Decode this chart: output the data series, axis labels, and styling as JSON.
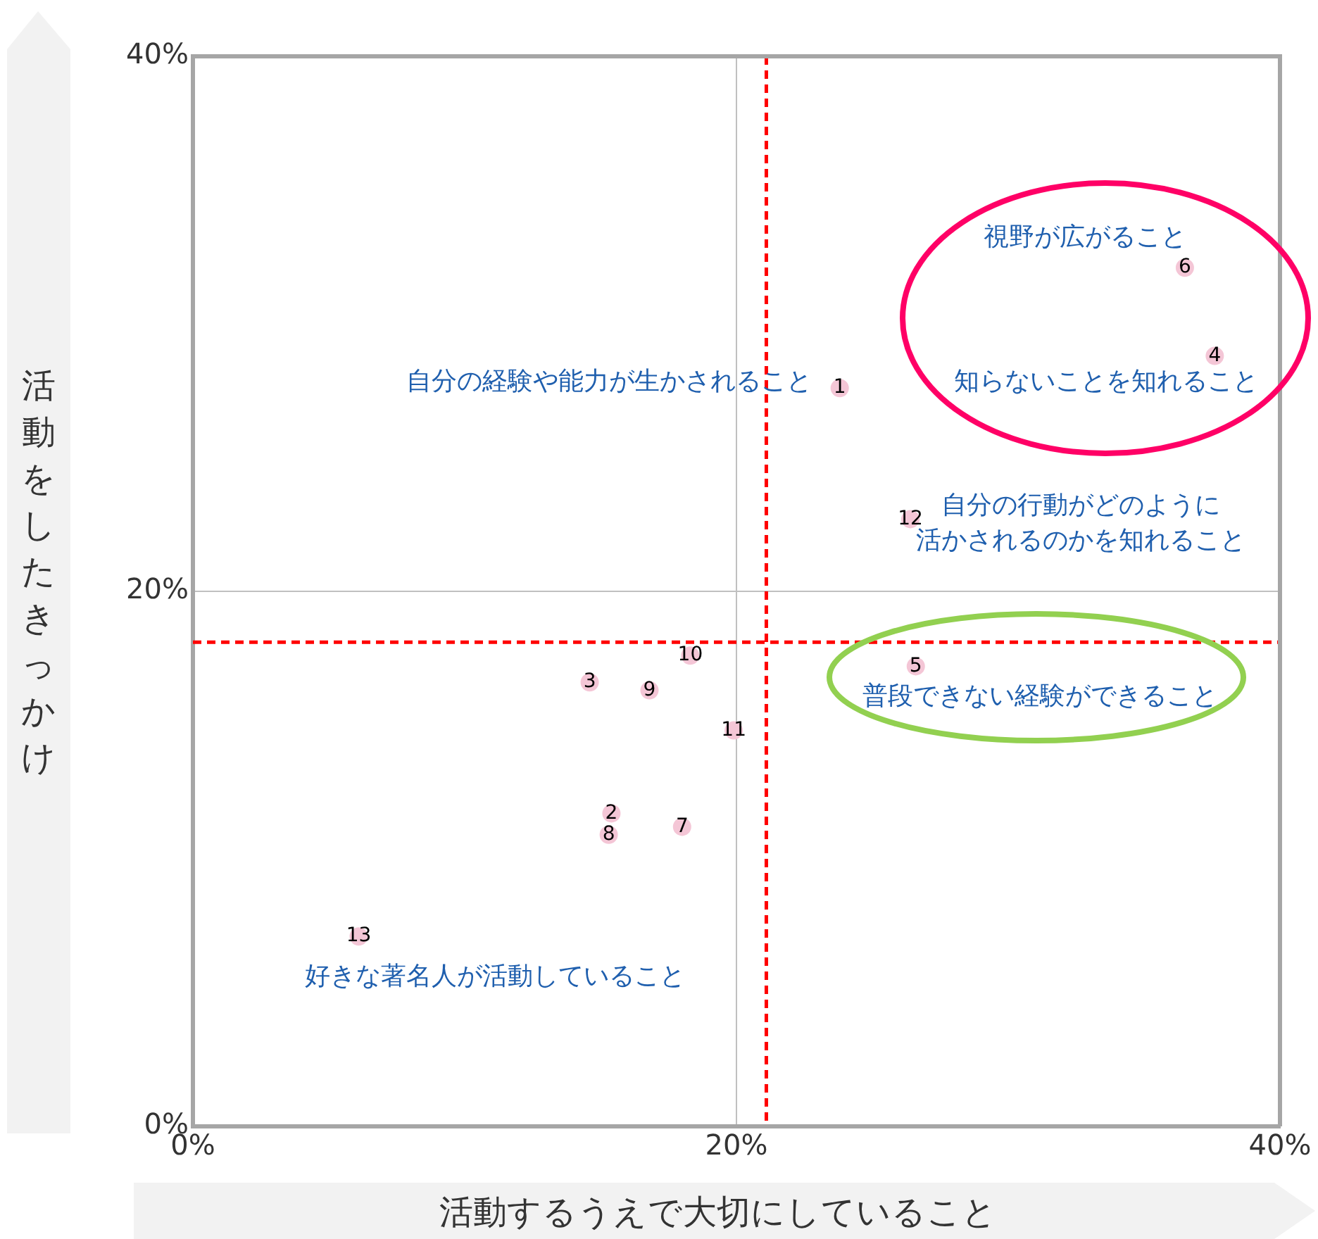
{
  "chart_data": {
    "type": "scatter",
    "xlabel": "活動するうえで大切にしていること",
    "ylabel": "活動をしたきっかけ",
    "x": [
      23.8,
      15.4,
      14.6,
      37.6,
      26.6,
      36.5,
      18.0,
      15.3,
      16.8,
      18.3,
      19.9,
      26.4,
      6.1
    ],
    "series": [
      {
        "color": "#f4c6d6",
        "values": [
          27.6,
          11.7,
          16.6,
          28.8,
          17.2,
          32.1,
          11.2,
          10.9,
          16.3,
          17.6,
          14.8,
          22.7,
          7.1
        ]
      }
    ],
    "marker": "circle",
    "xlim": [
      0,
      40
    ],
    "xticks": [
      {
        "value": 0,
        "label": "0%"
      },
      {
        "value": 20,
        "label": "20%"
      },
      {
        "value": 40,
        "label": "40%"
      }
    ],
    "ylim": [
      0,
      40
    ],
    "yticks": [
      {
        "value": 0,
        "label": "0%"
      },
      {
        "value": 20,
        "label": "20%"
      },
      {
        "value": 40,
        "label": "40%"
      }
    ],
    "grid": true,
    "legend": false,
    "ref_lines": [
      {
        "axis": "x",
        "value": 21.1,
        "color": "#ff0000",
        "line_style": "dashed"
      },
      {
        "axis": "y",
        "value": 18.1,
        "color": "#ff0000",
        "line_style": "dashed"
      }
    ],
    "annotations": [
      {
        "text": "1",
        "x": 23.8,
        "y": 27.6
      },
      {
        "text": "2",
        "x": 15.4,
        "y": 11.7
      },
      {
        "text": "3",
        "x": 14.6,
        "y": 16.6
      },
      {
        "text": "4",
        "x": 37.6,
        "y": 28.8
      },
      {
        "text": "5",
        "x": 26.6,
        "y": 17.2
      },
      {
        "text": "6",
        "x": 36.5,
        "y": 32.1
      },
      {
        "text": "7",
        "x": 18.0,
        "y": 11.2
      },
      {
        "text": "8",
        "x": 15.3,
        "y": 10.9
      },
      {
        "text": "9",
        "x": 16.8,
        "y": 16.3
      },
      {
        "text": "10",
        "x": 18.3,
        "y": 17.6
      },
      {
        "text": "11",
        "x": 19.9,
        "y": 14.8
      },
      {
        "text": "12",
        "x": 26.4,
        "y": 22.7
      },
      {
        "text": "13",
        "x": 6.1,
        "y": 7.1
      },
      {
        "text": "自分の経験や能力が生かされること",
        "x": 23.8,
        "y": 27.6
      },
      {
        "text": "視野が広がること",
        "x": 36.5,
        "y": 32.1
      },
      {
        "text": "知らないことを知れること",
        "x": 37.6,
        "y": 28.8
      },
      {
        "text": "自分の行動がどのように",
        "x": 26.4,
        "y": 22.7
      },
      {
        "text": "活かされるのかを知れること",
        "x": 26.4,
        "y": 22.7
      },
      {
        "text": "普段できない経験ができること",
        "x": 26.6,
        "y": 17.2
      },
      {
        "text": "好きな著名人が活動していること",
        "x": 6.1,
        "y": 7.1
      }
    ]
  }
}
